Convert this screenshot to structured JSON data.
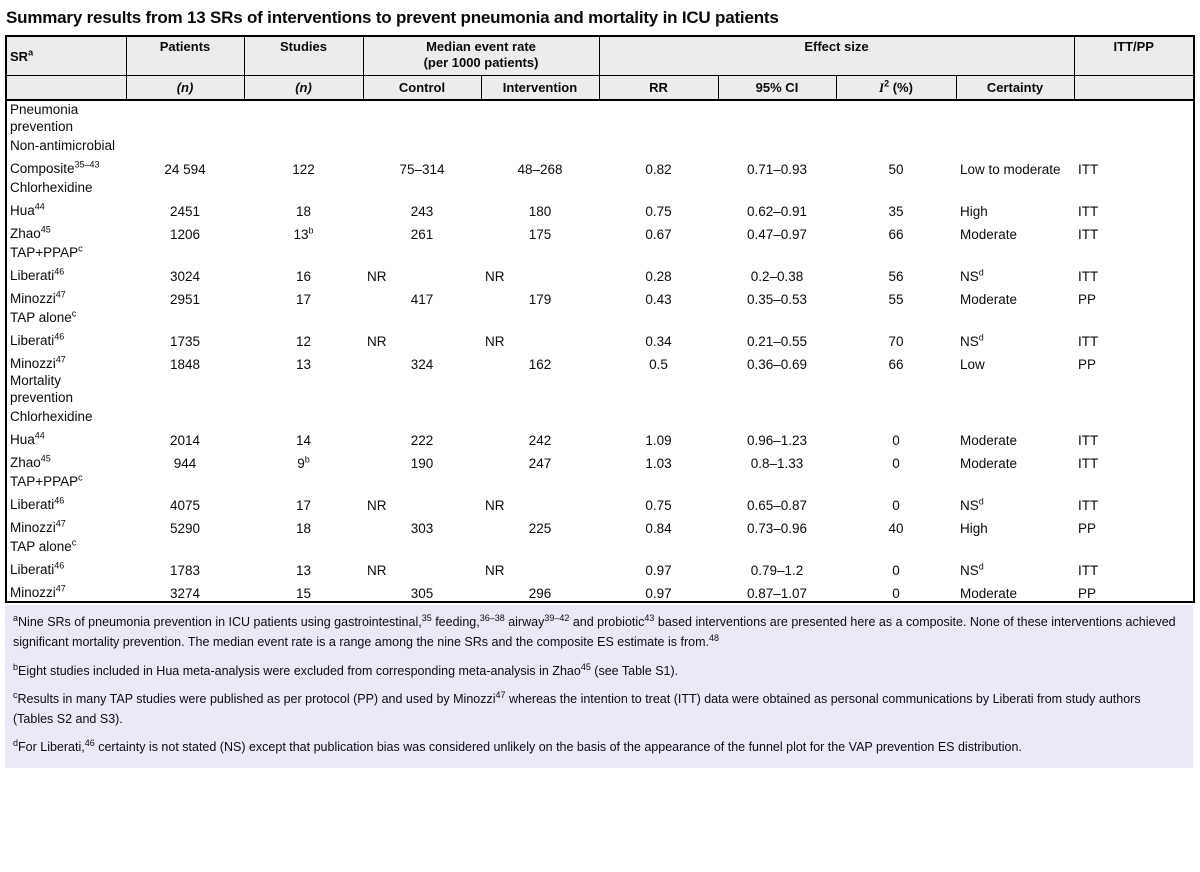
{
  "title": "Summary results from 13 SRs of interventions to prevent pneumonia and mortality in ICU patients",
  "colors": {
    "header_bg": "#ececec",
    "footnote_bg": "#e9e9f7",
    "border": "#000000",
    "text": "#111111"
  },
  "table": {
    "header": {
      "sr": "SR",
      "sr_sup": "a",
      "patients": "Patients",
      "studies": "Studies",
      "median_rate_line1": "Median event rate",
      "median_rate_line2": "(per 1000 patients)",
      "effect_size": "Effect size",
      "itt_pp": "ITT/PP",
      "n": "(n)",
      "control": "Control",
      "intervention": "Intervention",
      "rr": "RR",
      "ci": "95% CI",
      "i2_base": "I",
      "i2_sup": "2",
      "i2_rest": " (%)",
      "certainty": "Certainty"
    },
    "rows": [
      {
        "type": "group",
        "label": "Pneumonia prevention"
      },
      {
        "type": "group",
        "label": "Non-antimicrobial"
      },
      {
        "type": "data",
        "label": "Composite",
        "label_sup": "35–43",
        "patients": "24 594",
        "studies": "122",
        "control": "75–314",
        "intervention": "48–268",
        "rr": "0.82",
        "ci": "0.71–0.93",
        "i2": "50",
        "certainty": "Low to moderate",
        "itt_pp": "ITT"
      },
      {
        "type": "group",
        "label": "Chlorhexidine"
      },
      {
        "type": "data",
        "label": "Hua",
        "label_sup": "44",
        "patients": "2451",
        "studies": "18",
        "control": "243",
        "intervention": "180",
        "rr": "0.75",
        "ci": "0.62–0.91",
        "i2": "35",
        "certainty": "High",
        "itt_pp": "ITT"
      },
      {
        "type": "data",
        "label": "Zhao",
        "label_sup": "45",
        "patients": "1206",
        "studies": "13",
        "studies_sup": "b",
        "control": "261",
        "intervention": "175",
        "rr": "0.67",
        "ci": "0.47–0.97",
        "i2": "66",
        "certainty": "Moderate",
        "itt_pp": "ITT"
      },
      {
        "type": "group",
        "label": "TAP+PPAP",
        "label_sup": "c"
      },
      {
        "type": "data",
        "label": "Liberati",
        "label_sup": "46",
        "patients": "3024",
        "studies": "16",
        "control": "NR",
        "intervention": "NR",
        "rr": "0.28",
        "ci": "0.2–0.38",
        "i2": "56",
        "certainty": "NS",
        "certainty_sup": "d",
        "itt_pp": "ITT"
      },
      {
        "type": "data",
        "label": "Minozzi",
        "label_sup": "47",
        "patients": "2951",
        "studies": "17",
        "control": "417",
        "intervention": "179",
        "rr": "0.43",
        "ci": "0.35–0.53",
        "i2": "55",
        "certainty": "Moderate",
        "itt_pp": "PP"
      },
      {
        "type": "group",
        "label": "TAP alone",
        "label_sup": "c"
      },
      {
        "type": "data",
        "label": "Liberati",
        "label_sup": "46",
        "patients": "1735",
        "studies": "12",
        "control": "NR",
        "intervention": "NR",
        "rr": "0.34",
        "ci": "0.21–0.55",
        "i2": "70",
        "certainty": "NS",
        "certainty_sup": "d",
        "itt_pp": "ITT"
      },
      {
        "type": "data",
        "label": "Minozzi",
        "label_sup": "47",
        "patients": "1848",
        "studies": "13",
        "control": "324",
        "intervention": "162",
        "rr": "0.5",
        "ci": "0.36–0.69",
        "i2": "66",
        "certainty": "Low",
        "itt_pp": "PP"
      },
      {
        "type": "group",
        "label": "Mortality prevention"
      },
      {
        "type": "group",
        "label": "Chlorhexidine"
      },
      {
        "type": "data",
        "label": "Hua",
        "label_sup": "44",
        "patients": "2014",
        "studies": "14",
        "control": "222",
        "intervention": "242",
        "rr": "1.09",
        "ci": "0.96–1.23",
        "i2": "0",
        "certainty": "Moderate",
        "itt_pp": "ITT"
      },
      {
        "type": "data",
        "label": "Zhao",
        "label_sup": "45",
        "patients": "944",
        "studies": "9",
        "studies_sup": "b",
        "control": "190",
        "intervention": "247",
        "rr": "1.03",
        "ci": "0.8–1.33",
        "i2": "0",
        "certainty": "Moderate",
        "itt_pp": "ITT"
      },
      {
        "type": "group",
        "label": "TAP+PPAP",
        "label_sup": "c"
      },
      {
        "type": "data",
        "label": "Liberati",
        "label_sup": "46",
        "patients": "4075",
        "studies": "17",
        "control": "NR",
        "intervention": "NR",
        "rr": "0.75",
        "ci": "0.65–0.87",
        "i2": "0",
        "certainty": "NS",
        "certainty_sup": "d",
        "itt_pp": "ITT"
      },
      {
        "type": "data",
        "label": "Minozzi",
        "label_sup": "47",
        "patients": "5290",
        "studies": "18",
        "control": "303",
        "intervention": "225",
        "rr": "0.84",
        "ci": "0.73–0.96",
        "i2": "40",
        "certainty": "High",
        "itt_pp": "PP"
      },
      {
        "type": "group",
        "label": "TAP alone",
        "label_sup": "c"
      },
      {
        "type": "data",
        "label": "Liberati",
        "label_sup": "46",
        "patients": "1783",
        "studies": "13",
        "control": "NR",
        "intervention": "NR",
        "rr": "0.97",
        "ci": "0.79–1.2",
        "i2": "0",
        "certainty": "NS",
        "certainty_sup": "d",
        "itt_pp": "ITT"
      },
      {
        "type": "data",
        "label": "Minozzi",
        "label_sup": "47",
        "patients": "3274",
        "studies": "15",
        "control": "305",
        "intervention": "296",
        "rr": "0.97",
        "ci": "0.87–1.07",
        "i2": "0",
        "certainty": "Moderate",
        "itt_pp": "PP"
      }
    ]
  },
  "footnotes": [
    [
      {
        "sup": "a"
      },
      {
        "text": "Nine SRs of pneumonia prevention in ICU patients using gastrointestinal,"
      },
      {
        "sup": "35"
      },
      {
        "text": " feeding,"
      },
      {
        "sup": "36–38"
      },
      {
        "text": " airway"
      },
      {
        "sup": "39–42"
      },
      {
        "text": " and probiotic"
      },
      {
        "sup": "43"
      },
      {
        "text": " based interventions are presented here as a composite. None of these interventions achieved significant mortality prevention. The median event rate is a range among the nine SRs and the composite ES estimate is from."
      },
      {
        "sup": "48"
      }
    ],
    [
      {
        "sup": "b"
      },
      {
        "text": "Eight studies included in Hua meta-analysis were excluded from corresponding meta-analysis in Zhao"
      },
      {
        "sup": "45"
      },
      {
        "text": " (see Table S1)."
      }
    ],
    [
      {
        "sup": "c"
      },
      {
        "text": "Results in many TAP studies were published as per protocol (PP) and used by Minozzi"
      },
      {
        "sup": "47"
      },
      {
        "text": " whereas the intention to treat (ITT) data were obtained as personal communications by Liberati from study authors (Tables S2 and S3)."
      }
    ],
    [
      {
        "sup": "d"
      },
      {
        "text": "For Liberati,"
      },
      {
        "sup": "46"
      },
      {
        "text": " certainty is not stated (NS) except that publication bias was considered unlikely on the basis of the appearance of the funnel plot for the VAP prevention ES distribution."
      }
    ]
  ]
}
